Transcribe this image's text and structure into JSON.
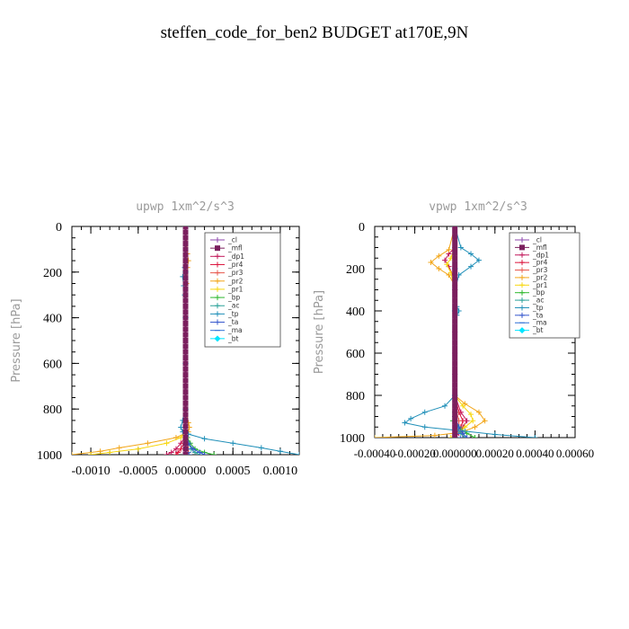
{
  "title": "steffen_code_for_ben2  BUDGET at170E,9N",
  "colors": {
    "cl": "#8e44ad",
    "mfl": "#7b1f5e",
    "dp1": "#c2185b",
    "pr4": "#dc143c",
    "pr3": "#e8564b",
    "pr2": "#f2a619",
    "pr1": "#f7d70f",
    "bp": "#2eb82e",
    "ac": "#2aa198",
    "tp": "#1f8fb8",
    "ta": "#3355cc",
    "ma": "#2d6fd6",
    "bt": "#00e5ff",
    "axis": "#000000",
    "label": "#9a9a9a"
  },
  "chart_data": [
    {
      "type": "line",
      "title": "upwp   1xm^2/s^3",
      "ylabel": "Pressure [hPa]",
      "xlabel": "",
      "xlim": [
        -0.0012,
        0.0012
      ],
      "ylim": [
        1000,
        0
      ],
      "xticks": [
        -0.001,
        -0.0005,
        0,
        0.0005,
        0.001
      ],
      "xtick_labels": [
        "-0.0010",
        "-0.0005",
        "0.00000",
        "0.0005",
        "0.0010"
      ],
      "yticks": [
        0,
        200,
        400,
        600,
        800,
        1000
      ],
      "ytick_labels": [
        "0",
        "200",
        "400",
        "600",
        "800",
        "1000"
      ],
      "legend": [
        "_cl",
        "_mfl",
        "_dp1",
        "_pr4",
        "_pr3",
        "_pr2",
        "_pr1",
        "_bp",
        "_ac",
        "_tp",
        "_ta",
        "_ma",
        "_bt"
      ],
      "legend_position": "top-right",
      "grid": false,
      "series": [
        {
          "name": "_cl",
          "key": "cl",
          "marker": "plus",
          "y": [
            0,
            100,
            200,
            300,
            400,
            500,
            600,
            700,
            800,
            900,
            1000
          ],
          "x": [
            0,
            0,
            0,
            0,
            0,
            0,
            0,
            0,
            0,
            0,
            0
          ]
        },
        {
          "name": "_mfl",
          "key": "mfl",
          "marker": "square",
          "y": [
            0,
            25,
            50,
            75,
            100,
            125,
            150,
            175,
            200,
            225,
            250,
            275,
            300,
            325,
            350,
            375,
            400,
            425,
            450,
            475,
            500,
            525,
            550,
            575,
            600,
            625,
            650,
            675,
            700,
            725,
            750,
            775,
            800,
            825,
            850,
            875,
            900,
            925,
            950,
            975,
            1000
          ],
          "x": [
            0,
            0,
            0,
            0,
            0,
            0,
            0,
            0,
            0,
            0,
            0,
            0,
            0,
            0,
            0,
            0,
            0,
            0,
            0,
            0,
            0,
            0,
            0,
            0,
            0,
            0,
            0,
            0,
            0,
            0,
            0,
            0,
            0,
            0,
            0,
            0,
            0,
            0,
            0,
            0,
            0
          ]
        },
        {
          "name": "_dp1",
          "key": "dp1",
          "marker": "plus",
          "y": [
            0,
            200,
            400,
            600,
            800,
            880,
            920,
            950,
            975,
            990,
            1000
          ],
          "x": [
            0,
            0,
            0,
            0,
            0,
            0,
            0,
            -5e-05,
            -0.0001,
            -0.00015,
            -0.0002
          ]
        },
        {
          "name": "_pr4",
          "key": "pr4",
          "marker": "plus",
          "y": [
            0,
            200,
            400,
            600,
            800,
            880,
            920,
            950,
            975,
            990,
            1000
          ],
          "x": [
            0,
            0,
            0,
            0,
            0,
            0,
            0,
            -2e-05,
            -5e-05,
            -8e-05,
            -0.0001
          ]
        },
        {
          "name": "_pr3",
          "key": "pr3",
          "marker": "plus",
          "y": [
            0,
            200,
            400,
            600,
            800,
            880,
            920,
            950,
            975,
            990,
            1000
          ],
          "x": [
            0,
            0,
            0,
            0,
            0,
            0,
            0,
            2e-05,
            3e-05,
            3e-05,
            4e-05
          ]
        },
        {
          "name": "_pr2",
          "key": "pr2",
          "marker": "plus",
          "y": [
            0,
            120,
            150,
            180,
            250,
            400,
            600,
            800,
            860,
            880,
            900,
            925,
            950,
            970,
            985,
            1000
          ],
          "x": [
            0,
            2e-05,
            3e-05,
            2e-05,
            1e-05,
            0,
            0,
            0,
            3e-05,
            4e-05,
            3e-05,
            -0.0001,
            -0.0004,
            -0.0007,
            -0.0009,
            -0.0012
          ]
        },
        {
          "name": "_pr1",
          "key": "pr1",
          "marker": "plus",
          "y": [
            0,
            200,
            400,
            600,
            800,
            860,
            900,
            925,
            950,
            975,
            990,
            1000
          ],
          "x": [
            0,
            0,
            0,
            0,
            0,
            0,
            0,
            -5e-05,
            -0.0002,
            -0.0005,
            -0.0008,
            -0.001
          ]
        },
        {
          "name": "_bp",
          "key": "bp",
          "marker": "plus",
          "y": [
            0,
            200,
            400,
            600,
            800,
            900,
            925,
            950,
            975,
            990,
            1000
          ],
          "x": [
            0,
            0,
            0,
            0,
            0,
            0,
            2e-05,
            5e-05,
            0.0001,
            0.0002,
            0.0003
          ]
        },
        {
          "name": "_ac",
          "key": "ac",
          "marker": "plus",
          "y": [
            0,
            200,
            400,
            600,
            800,
            900,
            950,
            975,
            990,
            1000
          ],
          "x": [
            0,
            0,
            0,
            0,
            0,
            0,
            3e-05,
            6e-05,
            0.0001,
            0.00015
          ]
        },
        {
          "name": "_tp",
          "key": "tp",
          "marker": "plus",
          "y": [
            0,
            180,
            220,
            260,
            300,
            400,
            600,
            800,
            850,
            880,
            900,
            910,
            930,
            950,
            970,
            985,
            1000
          ],
          "x": [
            0,
            -1e-05,
            -3e-05,
            -2e-05,
            -1e-05,
            0,
            0,
            0,
            -3e-05,
            -5e-05,
            -3e-05,
            3e-05,
            0.0002,
            0.0005,
            0.0008,
            0.001,
            0.0012
          ]
        },
        {
          "name": "_ta",
          "key": "ta",
          "marker": "plus",
          "y": [
            0,
            200,
            400,
            600,
            800,
            900,
            950,
            975,
            990,
            1000
          ],
          "x": [
            0,
            0,
            0,
            0,
            0,
            0,
            3e-05,
            8e-05,
            0.00015,
            0.0002
          ]
        },
        {
          "name": "_ma",
          "key": "ma",
          "marker": "dash",
          "y": [
            0,
            200,
            400,
            600,
            800,
            900,
            950,
            975,
            990,
            1000
          ],
          "x": [
            0,
            0,
            0,
            0,
            0,
            0,
            1e-05,
            2e-05,
            3e-05,
            4e-05
          ]
        },
        {
          "name": "_bt",
          "key": "bt",
          "marker": "diamond",
          "y": [
            0,
            200,
            400,
            600,
            800,
            1000
          ],
          "x": [
            0,
            0,
            0,
            0,
            0,
            0
          ]
        }
      ]
    },
    {
      "type": "line",
      "title": "vpwp   1xm^2/s^3",
      "ylabel": "Pressure [hPa]",
      "xlabel": "",
      "xlim": [
        -0.0004,
        0.0006
      ],
      "ylim": [
        1000,
        0
      ],
      "xticks": [
        -0.0004,
        -0.0002,
        0,
        0.0002,
        0.0004,
        0.0006
      ],
      "xtick_labels": [
        "-0.00040",
        "-0.00020",
        "0.000000",
        "0.00020",
        "0.00040",
        "0.00060"
      ],
      "yticks": [
        0,
        200,
        400,
        600,
        800,
        1000
      ],
      "ytick_labels": [
        "0",
        "200",
        "400",
        "600",
        "800",
        "1000"
      ],
      "legend": [
        "_cl",
        "_mfl",
        "_dp1",
        "_pr4",
        "_pr3",
        "_pr2",
        "_pr1",
        "_bp",
        "_ac",
        "_tp",
        "_ta",
        "_ma",
        "_bt"
      ],
      "legend_position": "top-right",
      "grid": false,
      "series": [
        {
          "name": "_cl",
          "key": "cl",
          "marker": "plus",
          "y": [
            0,
            100,
            200,
            300,
            400,
            500,
            600,
            700,
            800,
            900,
            1000
          ],
          "x": [
            0,
            0,
            0,
            0,
            0,
            0,
            0,
            0,
            0,
            0,
            0
          ]
        },
        {
          "name": "_mfl",
          "key": "mfl",
          "marker": "square",
          "y": [
            0,
            25,
            50,
            75,
            100,
            125,
            150,
            175,
            200,
            225,
            250,
            275,
            300,
            325,
            350,
            375,
            400,
            425,
            450,
            475,
            500,
            525,
            550,
            575,
            600,
            625,
            650,
            675,
            700,
            725,
            750,
            775,
            800,
            825,
            850,
            875,
            900,
            925,
            950,
            975,
            1000
          ],
          "x": [
            0,
            0,
            0,
            0,
            0,
            0,
            0,
            0,
            0,
            0,
            0,
            0,
            0,
            0,
            0,
            0,
            0,
            0,
            0,
            0,
            0,
            0,
            0,
            0,
            0,
            0,
            0,
            0,
            0,
            0,
            0,
            0,
            0,
            0,
            0,
            0,
            0,
            0,
            0,
            0,
            0
          ]
        },
        {
          "name": "_dp1",
          "key": "dp1",
          "marker": "plus",
          "y": [
            0,
            100,
            130,
            160,
            190,
            230,
            300,
            400,
            800,
            880,
            920,
            950,
            980,
            1000
          ],
          "x": [
            0,
            0,
            -3e-05,
            -5e-05,
            -3e-05,
            -1e-05,
            0,
            0,
            0,
            3e-05,
            6e-05,
            4e-05,
            2e-05,
            0
          ]
        },
        {
          "name": "_pr4",
          "key": "pr4",
          "marker": "plus",
          "y": [
            0,
            200,
            400,
            800,
            880,
            920,
            950,
            980,
            1000
          ],
          "x": [
            0,
            0,
            0,
            0,
            2e-05,
            4e-05,
            3e-05,
            1e-05,
            0
          ]
        },
        {
          "name": "_pr3",
          "key": "pr3",
          "marker": "plus",
          "y": [
            0,
            200,
            400,
            800,
            880,
            920,
            950,
            980,
            1000
          ],
          "x": [
            0,
            0,
            0,
            0,
            1e-05,
            2e-05,
            2e-05,
            1e-05,
            0
          ]
        },
        {
          "name": "_pr2",
          "key": "pr2",
          "marker": "plus",
          "y": [
            0,
            110,
            140,
            170,
            200,
            230,
            280,
            400,
            800,
            840,
            880,
            920,
            950,
            975,
            990,
            1000
          ],
          "x": [
            0,
            -3e-05,
            -8e-05,
            -0.00012,
            -8e-05,
            -3e-05,
            0,
            0,
            0,
            5e-05,
            0.00012,
            0.00015,
            0.0001,
            3e-05,
            -0.0001,
            -0.0004
          ]
        },
        {
          "name": "_pr1",
          "key": "pr1",
          "marker": "plus",
          "y": [
            0,
            100,
            150,
            180,
            220,
            300,
            400,
            800,
            850,
            890,
            920,
            950,
            980,
            1000
          ],
          "x": [
            0,
            0,
            -2e-05,
            -4e-05,
            -2e-05,
            0,
            0,
            0,
            4e-05,
            8e-05,
            9e-05,
            5e-05,
            1e-05,
            -2e-05
          ]
        },
        {
          "name": "_bp",
          "key": "bp",
          "marker": "plus",
          "y": [
            0,
            200,
            400,
            800,
            880,
            920,
            950,
            980,
            1000
          ],
          "x": [
            0,
            0,
            0,
            0,
            0,
            -1e-05,
            2e-05,
            6e-05,
            0.0001
          ]
        },
        {
          "name": "_ac",
          "key": "ac",
          "marker": "plus",
          "y": [
            0,
            200,
            400,
            800,
            880,
            920,
            950,
            980,
            1000
          ],
          "x": [
            0,
            0,
            0,
            0,
            0,
            0,
            1e-05,
            3e-05,
            5e-05
          ]
        },
        {
          "name": "_tp",
          "key": "tp",
          "marker": "plus",
          "y": [
            0,
            100,
            130,
            160,
            190,
            230,
            300,
            380,
            400,
            420,
            800,
            850,
            880,
            910,
            930,
            950,
            970,
            985,
            1000
          ],
          "x": [
            0,
            3e-05,
            8e-05,
            0.00012,
            8e-05,
            2e-05,
            0,
            1e-05,
            2e-05,
            1e-05,
            0,
            -5e-05,
            -0.00015,
            -0.00022,
            -0.00025,
            -0.00015,
            5e-05,
            0.0002,
            0.0004
          ]
        },
        {
          "name": "_ta",
          "key": "ta",
          "marker": "plus",
          "y": [
            0,
            200,
            400,
            800,
            900,
            950,
            980,
            1000
          ],
          "x": [
            0,
            0,
            0,
            0,
            0,
            2e-05,
            4e-05,
            6e-05
          ]
        },
        {
          "name": "_ma",
          "key": "ma",
          "marker": "dash",
          "y": [
            0,
            200,
            400,
            800,
            900,
            950,
            980,
            1000
          ],
          "x": [
            0,
            0,
            0,
            0,
            0,
            1e-05,
            2e-05,
            3e-05
          ]
        },
        {
          "name": "_bt",
          "key": "bt",
          "marker": "diamond",
          "y": [
            0,
            200,
            400,
            800,
            1000
          ],
          "x": [
            0,
            0,
            0,
            0,
            0
          ]
        }
      ]
    }
  ]
}
